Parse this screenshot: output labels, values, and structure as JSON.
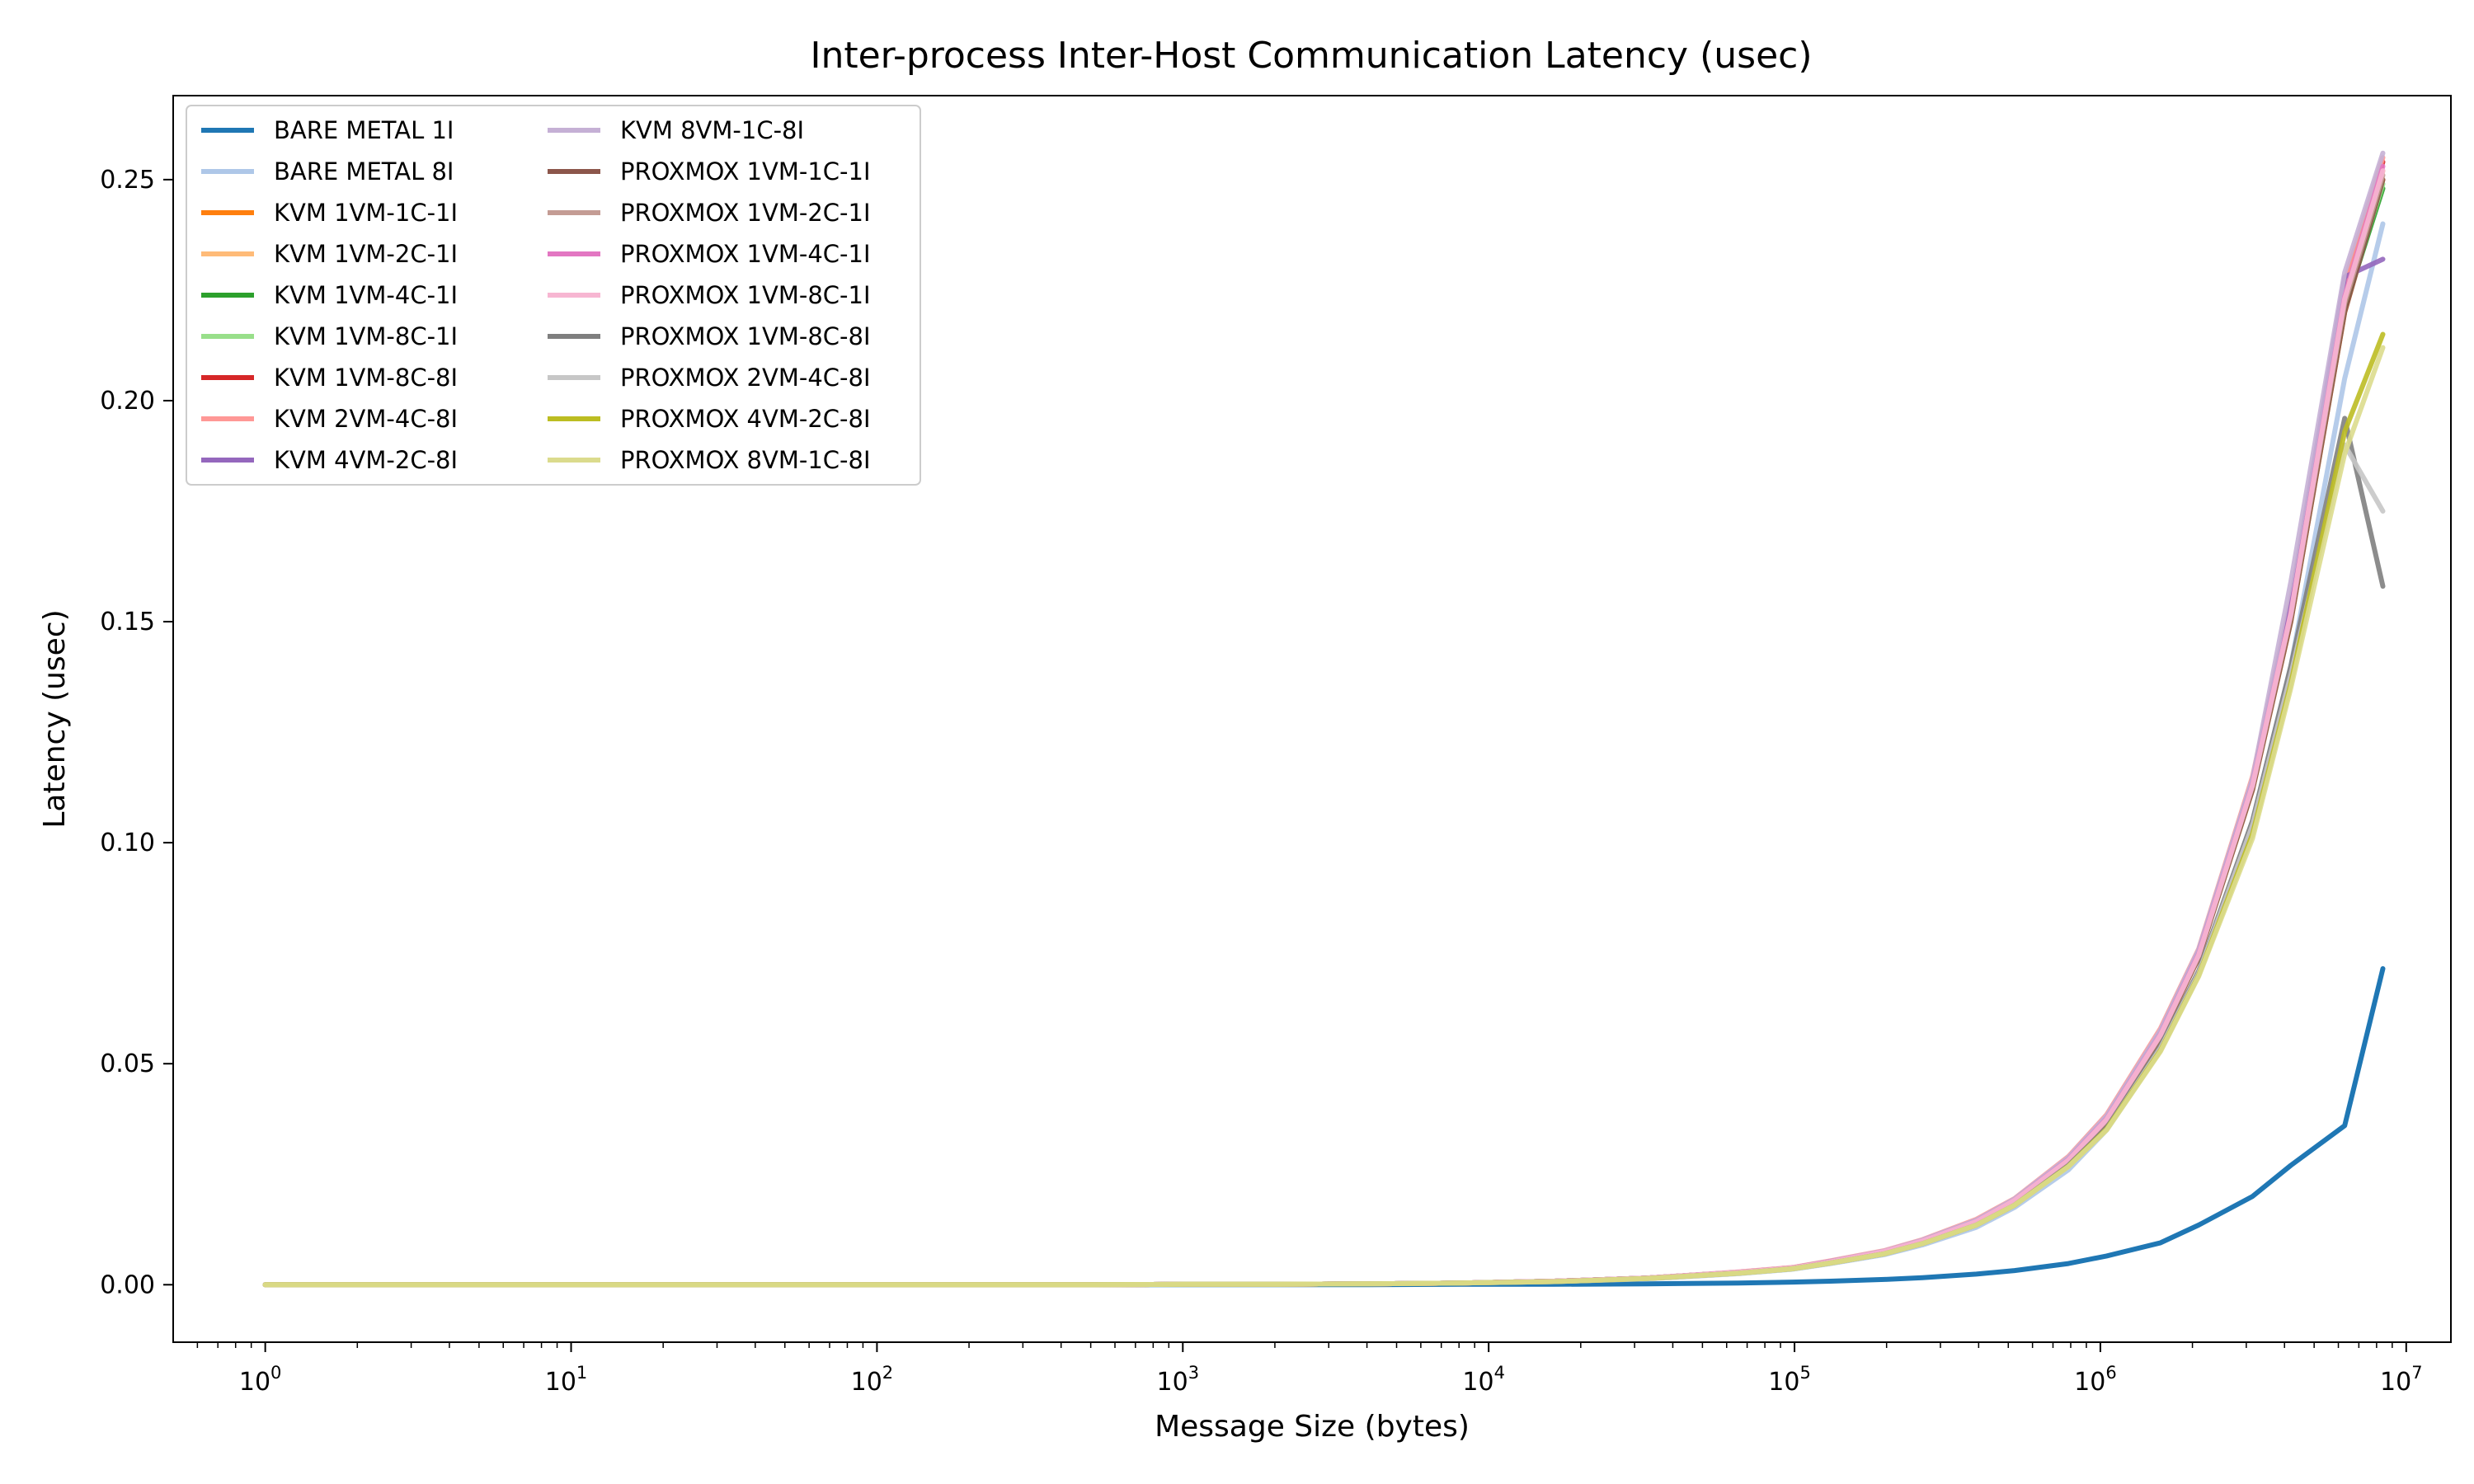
{
  "chart_data": {
    "type": "line",
    "title": "Inter-process Inter-Host Communication Latency (usec)",
    "xlabel": "Message Size (bytes)",
    "ylabel": "Latency (usec)",
    "xscale": "log",
    "xlim": [
      0.5,
      14000000
    ],
    "ylim": [
      -0.013,
      0.269
    ],
    "x_ticks": [
      1,
      10,
      100,
      1000,
      10000,
      100000,
      1000000,
      10000000
    ],
    "x_tick_labels": [
      {
        "base": "10",
        "exp": "0"
      },
      {
        "base": "10",
        "exp": "1"
      },
      {
        "base": "10",
        "exp": "2"
      },
      {
        "base": "10",
        "exp": "3"
      },
      {
        "base": "10",
        "exp": "4"
      },
      {
        "base": "10",
        "exp": "5"
      },
      {
        "base": "10",
        "exp": "6"
      },
      {
        "base": "10",
        "exp": "7"
      }
    ],
    "y_ticks": [
      0.0,
      0.05,
      0.1,
      0.15,
      0.2,
      0.25
    ],
    "y_tick_labels": [
      "0.00",
      "0.05",
      "0.10",
      "0.15",
      "0.20",
      "0.25"
    ],
    "grid": false,
    "legend": {
      "placement": "top-left",
      "columns": 2
    },
    "x": [
      1,
      2,
      4,
      8,
      16,
      32,
      64,
      128,
      256,
      512,
      1024,
      2048,
      4096,
      8192,
      16384,
      32768,
      65536,
      98304,
      131072,
      196608,
      262144,
      393216,
      524288,
      786432,
      1048576,
      1572864,
      2097152,
      3145728,
      4194304,
      6291456,
      8388608
    ],
    "series": [
      {
        "name": "BARE METAL 1I",
        "color": "#1f77b4",
        "values": [
          0,
          0,
          0,
          0,
          0,
          0,
          0,
          0,
          0,
          0,
          0,
          0,
          0,
          0.0001,
          0.0001,
          0.0002,
          0.0004,
          0.0006,
          0.0008,
          0.0012,
          0.0016,
          0.0024,
          0.0032,
          0.0048,
          0.0065,
          0.0095,
          0.0135,
          0.02,
          0.027,
          0.036,
          0.0715
        ]
      },
      {
        "name": "BARE METAL 8I",
        "color": "#aec7e8",
        "values": [
          0,
          0,
          0,
          0,
          0,
          0,
          0,
          0,
          0,
          0,
          0.0001,
          0.0001,
          0.0002,
          0.0004,
          0.0007,
          0.0013,
          0.0025,
          0.0035,
          0.0048,
          0.0068,
          0.009,
          0.013,
          0.0175,
          0.026,
          0.035,
          0.053,
          0.07,
          0.105,
          0.14,
          0.205,
          0.24
        ]
      },
      {
        "name": "KVM 1VM-1C-1I",
        "color": "#ff7f0e",
        "values": [
          0,
          0,
          0,
          0,
          0,
          0,
          0,
          0,
          0,
          0,
          0.0001,
          0.0001,
          0.0002,
          0.0004,
          0.0008,
          0.0015,
          0.0028,
          0.0038,
          0.0052,
          0.0074,
          0.0098,
          0.0142,
          0.019,
          0.028,
          0.037,
          0.056,
          0.074,
          0.112,
          0.15,
          0.22,
          0.25
        ]
      },
      {
        "name": "KVM 1VM-2C-1I",
        "color": "#ffbb78",
        "values": [
          0,
          0,
          0,
          0,
          0,
          0,
          0,
          0,
          0,
          0,
          0.0001,
          0.0001,
          0.0002,
          0.0004,
          0.0008,
          0.0015,
          0.0028,
          0.0038,
          0.0052,
          0.0074,
          0.0098,
          0.0142,
          0.019,
          0.028,
          0.0372,
          0.0565,
          0.0745,
          0.113,
          0.152,
          0.223,
          0.252
        ]
      },
      {
        "name": "KVM 1VM-4C-1I",
        "color": "#2ca02c",
        "values": [
          0,
          0,
          0,
          0,
          0,
          0,
          0,
          0,
          0,
          0,
          0.0001,
          0.0001,
          0.0002,
          0.0004,
          0.0008,
          0.0015,
          0.0028,
          0.0038,
          0.0052,
          0.0074,
          0.0098,
          0.0142,
          0.019,
          0.028,
          0.037,
          0.0562,
          0.0742,
          0.1125,
          0.151,
          0.221,
          0.248
        ]
      },
      {
        "name": "KVM 1VM-8C-1I",
        "color": "#98df8a",
        "values": [
          0,
          0,
          0,
          0,
          0,
          0,
          0,
          0,
          0,
          0,
          0.0001,
          0.0001,
          0.0002,
          0.0004,
          0.0008,
          0.0015,
          0.0028,
          0.0038,
          0.0052,
          0.0074,
          0.0098,
          0.0142,
          0.019,
          0.028,
          0.0371,
          0.0563,
          0.0743,
          0.1128,
          0.1515,
          0.222,
          0.249
        ]
      },
      {
        "name": "KVM 1VM-8C-8I",
        "color": "#d62728",
        "values": [
          0,
          0,
          0,
          0,
          0,
          0,
          0,
          0,
          0,
          0,
          0.0001,
          0.0001,
          0.0002,
          0.0004,
          0.0008,
          0.0015,
          0.0028,
          0.0038,
          0.0052,
          0.0074,
          0.0098,
          0.0142,
          0.019,
          0.0282,
          0.0374,
          0.0568,
          0.075,
          0.1135,
          0.153,
          0.225,
          0.254
        ]
      },
      {
        "name": "KVM 2VM-4C-8I",
        "color": "#ff9896",
        "values": [
          0,
          0,
          0,
          0,
          0,
          0,
          0,
          0,
          0,
          0,
          0.0001,
          0.0001,
          0.0002,
          0.0004,
          0.0008,
          0.0015,
          0.0029,
          0.0039,
          0.0054,
          0.0077,
          0.0102,
          0.0148,
          0.0195,
          0.029,
          0.0385,
          0.058,
          0.076,
          0.115,
          0.155,
          0.227,
          0.255
        ]
      },
      {
        "name": "KVM 4VM-2C-8I",
        "color": "#9467bd",
        "values": [
          0,
          0,
          0,
          0,
          0,
          0,
          0,
          0,
          0,
          0,
          0.0001,
          0.0001,
          0.0002,
          0.0004,
          0.0008,
          0.0015,
          0.0028,
          0.0038,
          0.0053,
          0.0075,
          0.01,
          0.0145,
          0.0192,
          0.0285,
          0.0378,
          0.0572,
          0.0755,
          0.114,
          0.154,
          0.228,
          0.232
        ]
      },
      {
        "name": "KVM 8VM-1C-8I",
        "color": "#c5b0d5",
        "values": [
          0,
          0,
          0,
          0,
          0,
          0,
          0,
          0,
          0,
          0,
          0.0001,
          0.0001,
          0.0002,
          0.0004,
          0.0008,
          0.0015,
          0.0028,
          0.0038,
          0.0053,
          0.0076,
          0.0101,
          0.0146,
          0.0194,
          0.0288,
          0.0382,
          0.0576,
          0.0758,
          0.1145,
          0.159,
          0.229,
          0.256
        ]
      },
      {
        "name": "PROXMOX 1VM-1C-1I",
        "color": "#8c564b",
        "values": [
          0,
          0,
          0,
          0,
          0,
          0,
          0,
          0,
          0,
          0,
          0.0001,
          0.0001,
          0.0002,
          0.0004,
          0.0008,
          0.0015,
          0.0028,
          0.0038,
          0.0052,
          0.0074,
          0.0098,
          0.0142,
          0.019,
          0.028,
          0.037,
          0.056,
          0.074,
          0.112,
          0.15,
          0.22,
          0.25
        ]
      },
      {
        "name": "PROXMOX 1VM-2C-1I",
        "color": "#c49c94",
        "values": [
          0,
          0,
          0,
          0,
          0,
          0,
          0,
          0,
          0,
          0,
          0.0001,
          0.0001,
          0.0002,
          0.0004,
          0.0008,
          0.0015,
          0.0028,
          0.0038,
          0.0052,
          0.0074,
          0.0098,
          0.0142,
          0.019,
          0.0281,
          0.0372,
          0.0563,
          0.0744,
          0.1128,
          0.1512,
          0.222,
          0.251
        ]
      },
      {
        "name": "PROXMOX 1VM-4C-1I",
        "color": "#e377c2",
        "values": [
          0,
          0,
          0,
          0,
          0,
          0,
          0,
          0,
          0,
          0,
          0.0001,
          0.0001,
          0.0002,
          0.0004,
          0.0008,
          0.0015,
          0.0028,
          0.0038,
          0.0052,
          0.0075,
          0.0099,
          0.0143,
          0.0191,
          0.0283,
          0.0375,
          0.0566,
          0.0748,
          0.1132,
          0.152,
          0.2235,
          0.253
        ]
      },
      {
        "name": "PROXMOX 1VM-8C-1I",
        "color": "#f7b6d2",
        "values": [
          0,
          0,
          0,
          0,
          0,
          0,
          0,
          0,
          0,
          0,
          0.0001,
          0.0001,
          0.0002,
          0.0004,
          0.0008,
          0.0015,
          0.0028,
          0.0038,
          0.0052,
          0.0075,
          0.0099,
          0.0143,
          0.0191,
          0.0282,
          0.0374,
          0.0565,
          0.0746,
          0.113,
          0.1518,
          0.223,
          0.252
        ]
      },
      {
        "name": "PROXMOX 1VM-8C-8I",
        "color": "#7f7f7f",
        "values": [
          0,
          0,
          0,
          0,
          0,
          0,
          0,
          0,
          0,
          0,
          0.0001,
          0.0001,
          0.0002,
          0.0004,
          0.0007,
          0.0014,
          0.0026,
          0.0036,
          0.0049,
          0.007,
          0.0093,
          0.0135,
          0.018,
          0.027,
          0.0355,
          0.054,
          0.071,
          0.105,
          0.14,
          0.196,
          0.158
        ]
      },
      {
        "name": "PROXMOX 2VM-4C-8I",
        "color": "#c7c7c7",
        "values": [
          0,
          0,
          0,
          0,
          0,
          0,
          0,
          0,
          0,
          0,
          0.0001,
          0.0001,
          0.0002,
          0.0004,
          0.0007,
          0.0014,
          0.0026,
          0.0036,
          0.0049,
          0.007,
          0.0093,
          0.0135,
          0.018,
          0.0268,
          0.0352,
          0.0535,
          0.0705,
          0.104,
          0.138,
          0.19,
          0.175
        ]
      },
      {
        "name": "PROXMOX 4VM-2C-8I",
        "color": "#bcbd22",
        "values": [
          0,
          0,
          0,
          0,
          0,
          0,
          0,
          0,
          0,
          0,
          0.0001,
          0.0001,
          0.0002,
          0.0004,
          0.0007,
          0.0014,
          0.0026,
          0.0036,
          0.0049,
          0.007,
          0.0093,
          0.0135,
          0.018,
          0.0268,
          0.0352,
          0.053,
          0.07,
          0.102,
          0.136,
          0.193,
          0.215
        ]
      },
      {
        "name": "PROXMOX 8VM-1C-8I",
        "color": "#dbdb8d",
        "values": [
          0,
          0,
          0,
          0,
          0,
          0,
          0,
          0,
          0,
          0,
          0.0001,
          0.0001,
          0.0002,
          0.0004,
          0.0007,
          0.0014,
          0.0026,
          0.0036,
          0.0049,
          0.007,
          0.0093,
          0.0135,
          0.018,
          0.0267,
          0.035,
          0.0528,
          0.0698,
          0.101,
          0.135,
          0.188,
          0.212
        ]
      }
    ]
  }
}
